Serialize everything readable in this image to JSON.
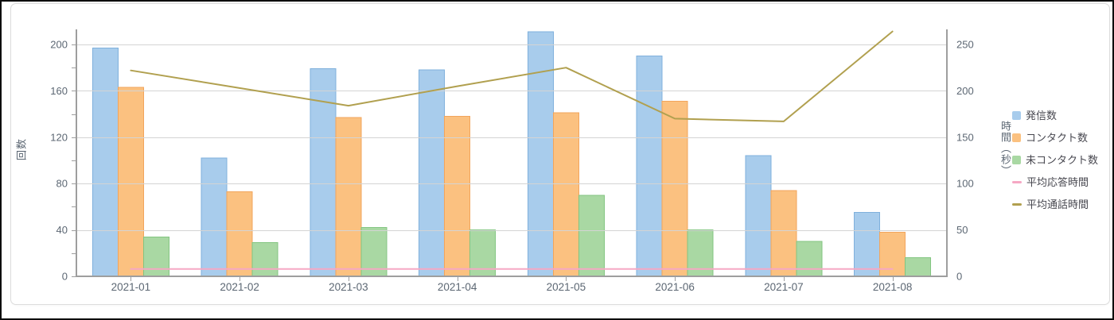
{
  "chart_data": {
    "type": "bar",
    "subtype": "grouped-bar-with-lines",
    "categories": [
      "2021-01",
      "2021-02",
      "2021-03",
      "2021-04",
      "2021-05",
      "2021-06",
      "2021-07",
      "2021-08"
    ],
    "series": [
      {
        "name": "発信数",
        "type": "bar",
        "axis": "left",
        "color": "#A8CCEC",
        "border": "#7FB0DC",
        "values": [
          197,
          102,
          179,
          178,
          211,
          190,
          104,
          55
        ]
      },
      {
        "name": "コンタクト数",
        "type": "bar",
        "axis": "left",
        "color": "#FBC180",
        "border": "#F2A55C",
        "values": [
          163,
          73,
          137,
          138,
          141,
          151,
          74,
          38
        ]
      },
      {
        "name": "未コンタクト数",
        "type": "bar",
        "axis": "left",
        "color": "#A9D8A3",
        "border": "#83C581",
        "values": [
          34,
          29,
          42,
          40,
          70,
          40,
          30,
          16
        ]
      },
      {
        "name": "平均応答時間",
        "type": "line",
        "axis": "right",
        "color": "#F6A8C4",
        "values": [
          8,
          8,
          8,
          8,
          8,
          8,
          8,
          8
        ]
      },
      {
        "name": "平均通話時間",
        "type": "line",
        "axis": "right",
        "color": "#B1A04F",
        "values": [
          222,
          203,
          184,
          205,
          225,
          170,
          167,
          264
        ]
      }
    ],
    "left_axis": {
      "title": "回数",
      "ticks": [
        0,
        40,
        80,
        120,
        160,
        200
      ],
      "max": 200,
      "minor_step": 20
    },
    "right_axis": {
      "title": "時間（秒）",
      "ticks": [
        0,
        50,
        100,
        150,
        200,
        250
      ],
      "max": 250
    },
    "xlabel": "",
    "ylabel": "回数",
    "y2label": "時間（秒）",
    "title": "",
    "grid": true,
    "legend_position": "right",
    "axis_colors": {
      "axis_line": "#9e9e9e",
      "grid_line": "#d4d4d4",
      "tick_label": "#5c6773"
    }
  }
}
